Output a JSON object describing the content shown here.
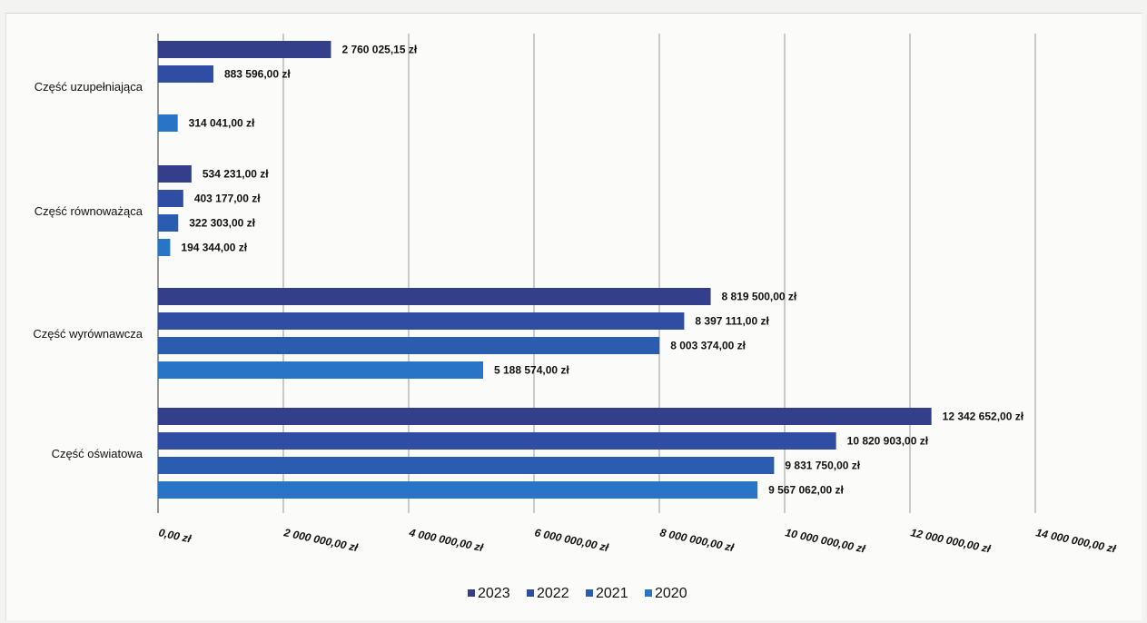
{
  "chart_data": {
    "type": "bar",
    "orientation": "horizontal",
    "categories": [
      "Część uzupełniająca",
      "Część równoważąca",
      "Część wyrównawcza",
      "Część oświatowa"
    ],
    "series": [
      {
        "name": "2023",
        "color": "#343f8c",
        "values": [
          2760025.15,
          534231.0,
          8819500.0,
          12342652.0
        ],
        "labels": [
          "2 760 025,15 zł",
          "534 231,00 zł",
          "8 819 500,00 zł",
          "12 342 652,00 zł"
        ]
      },
      {
        "name": "2022",
        "color": "#2f4ea3",
        "values": [
          883596.0,
          403177.0,
          8397111.0,
          10820903.0
        ],
        "labels": [
          "883 596,00 zł",
          "403 177,00 zł",
          "8 397 111,00 zł",
          "10 820 903,00 zł"
        ]
      },
      {
        "name": "2021",
        "color": "#2a5cb0",
        "values": [
          null,
          322303.0,
          8003374.0,
          9831750.0
        ],
        "labels": [
          "",
          "322 303,00 zł",
          "8 003 374,00 zł",
          "9 831 750,00 zł"
        ]
      },
      {
        "name": "2020",
        "color": "#2a74c8",
        "values": [
          314041.0,
          194344.0,
          5188574.0,
          9567062.0
        ],
        "labels": [
          "314 041,00 zł",
          "194 344,00 zł",
          "5 188 574,00 zł",
          "9 567 062,00 zł"
        ]
      }
    ],
    "xlim": [
      0,
      14000000
    ],
    "xticks": [
      0,
      2000000,
      4000000,
      6000000,
      8000000,
      10000000,
      12000000,
      14000000
    ],
    "xtick_labels": [
      "0,00 zł",
      "2 000 000,00 zł",
      "4 000 000,00 zł",
      "6 000 000,00 zł",
      "8 000 000,00 zł",
      "10 000 000,00 zł",
      "12 000 000,00 zł",
      "14 000 000,00 zł"
    ],
    "grid": true,
    "legend": "bottom",
    "title": "",
    "xlabel": "",
    "ylabel": ""
  }
}
